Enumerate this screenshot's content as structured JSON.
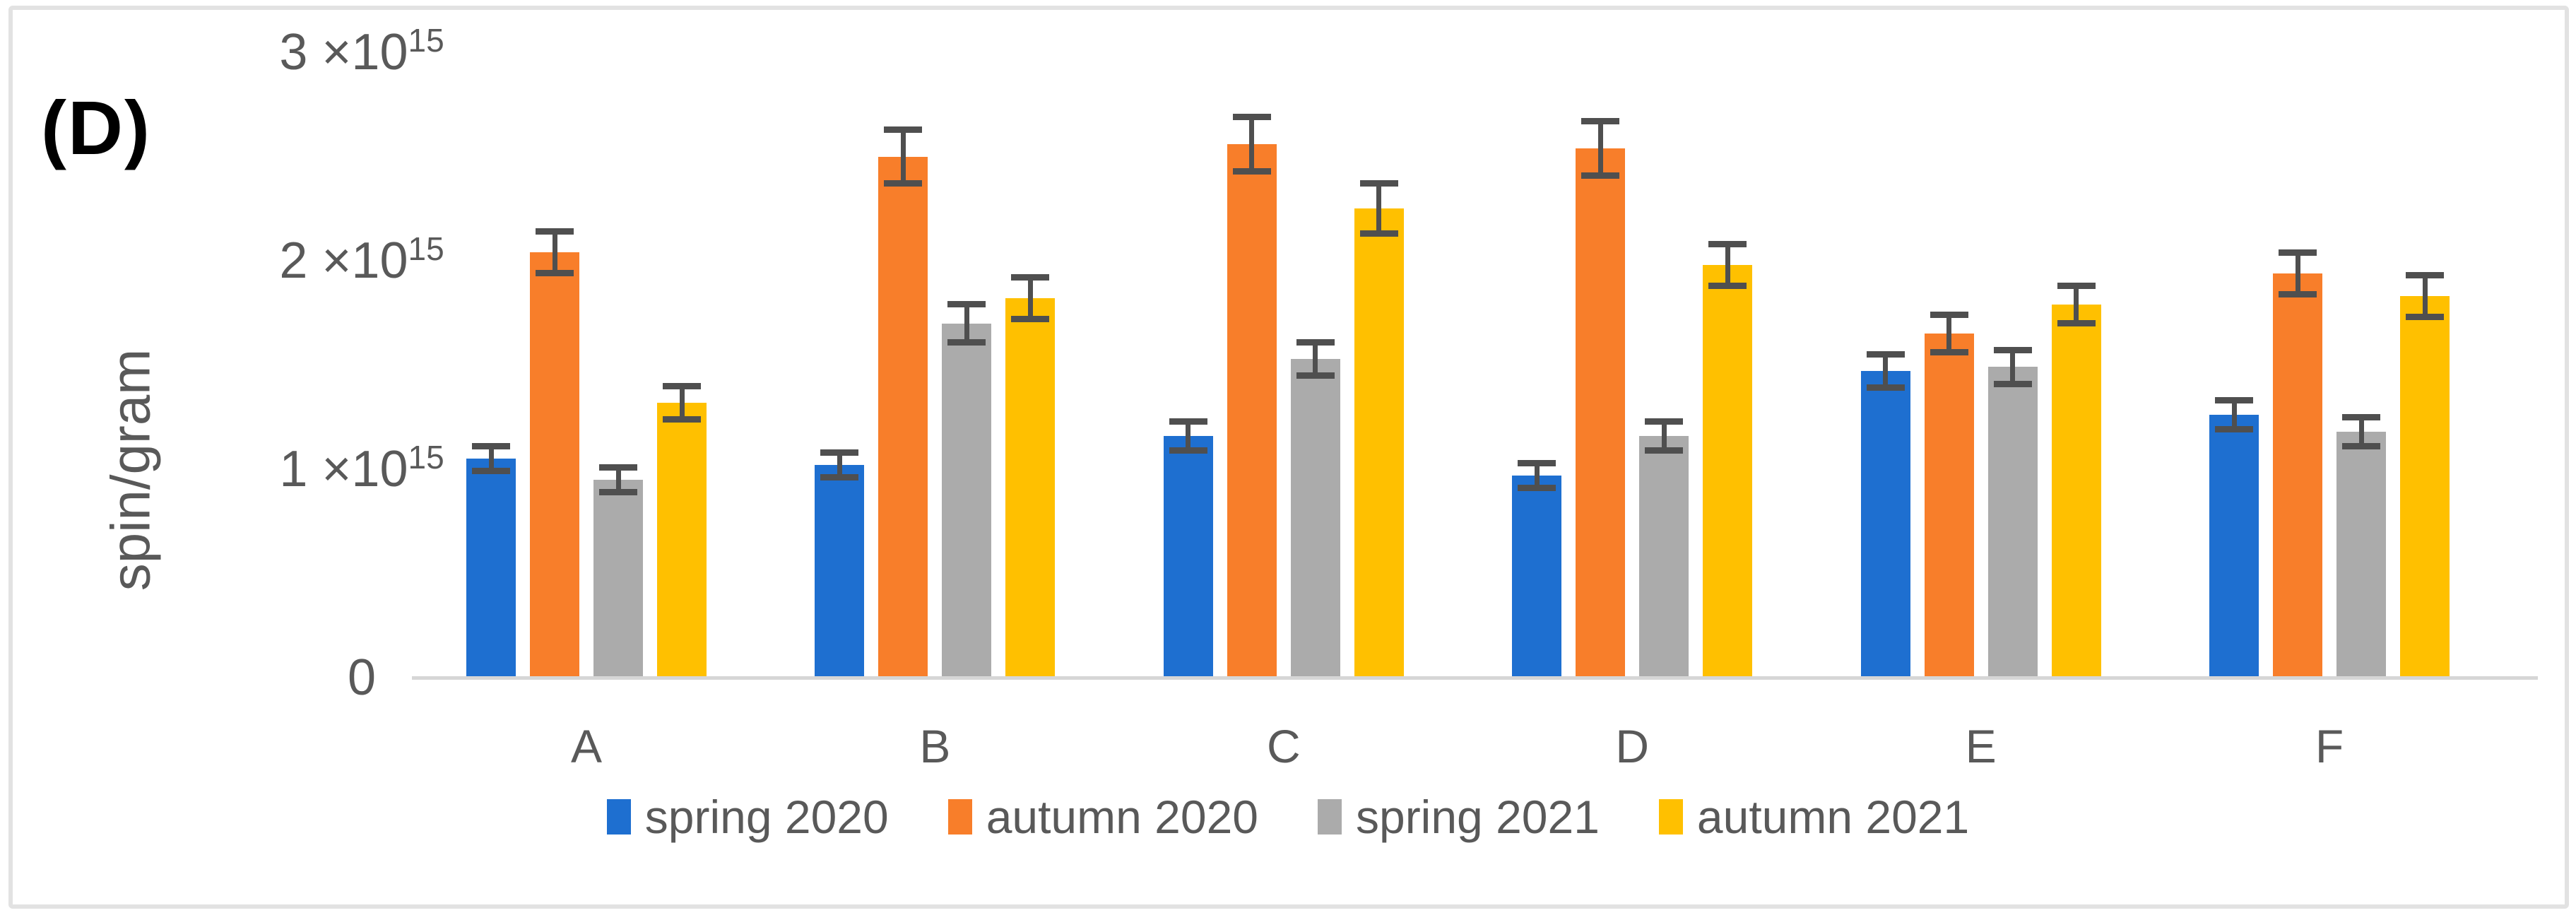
{
  "chart_data": {
    "type": "bar",
    "panel_label": "(D)",
    "ylabel": "spin/gram",
    "value_unit": "spin/gram, values in units of 10^15",
    "ylim": [
      0,
      3000000000000000.0
    ],
    "grid": false,
    "legend_position": "bottom-center",
    "categories": [
      "A",
      "B",
      "C",
      "D",
      "E",
      "F"
    ],
    "yticks": [
      {
        "text": "3 ×10",
        "sup": "15",
        "value": 3
      },
      {
        "text": "2 ×10",
        "sup": "15",
        "value": 2
      },
      {
        "text": "1 ×10",
        "sup": "15",
        "value": 1
      },
      {
        "text": "0",
        "sup": "",
        "value": 0
      }
    ],
    "series": [
      {
        "name": "spring 2020",
        "color": "#1e6fd0",
        "values": [
          1.05,
          1.02,
          1.16,
          0.97,
          1.47,
          1.26
        ],
        "errors": [
          0.06,
          0.06,
          0.07,
          0.06,
          0.08,
          0.07
        ]
      },
      {
        "name": "autumn 2020",
        "color": "#f87e2a",
        "values": [
          2.04,
          2.5,
          2.56,
          2.54,
          1.65,
          1.94
        ],
        "errors": [
          0.1,
          0.13,
          0.13,
          0.13,
          0.09,
          0.1
        ]
      },
      {
        "name": "spring 2021",
        "color": "#ababab",
        "values": [
          0.95,
          1.7,
          1.53,
          1.16,
          1.49,
          1.18
        ],
        "errors": [
          0.06,
          0.09,
          0.08,
          0.07,
          0.08,
          0.07
        ]
      },
      {
        "name": "autumn 2021",
        "color": "#ffc000",
        "values": [
          1.32,
          1.82,
          2.25,
          1.98,
          1.79,
          1.83
        ],
        "errors": [
          0.08,
          0.1,
          0.12,
          0.1,
          0.09,
          0.1
        ]
      }
    ],
    "colors": {
      "error_bar": "#4f4f4f",
      "axis_line": "#d6d6d6",
      "tick_text": "#595959",
      "panel_label_text": "#000000"
    }
  }
}
